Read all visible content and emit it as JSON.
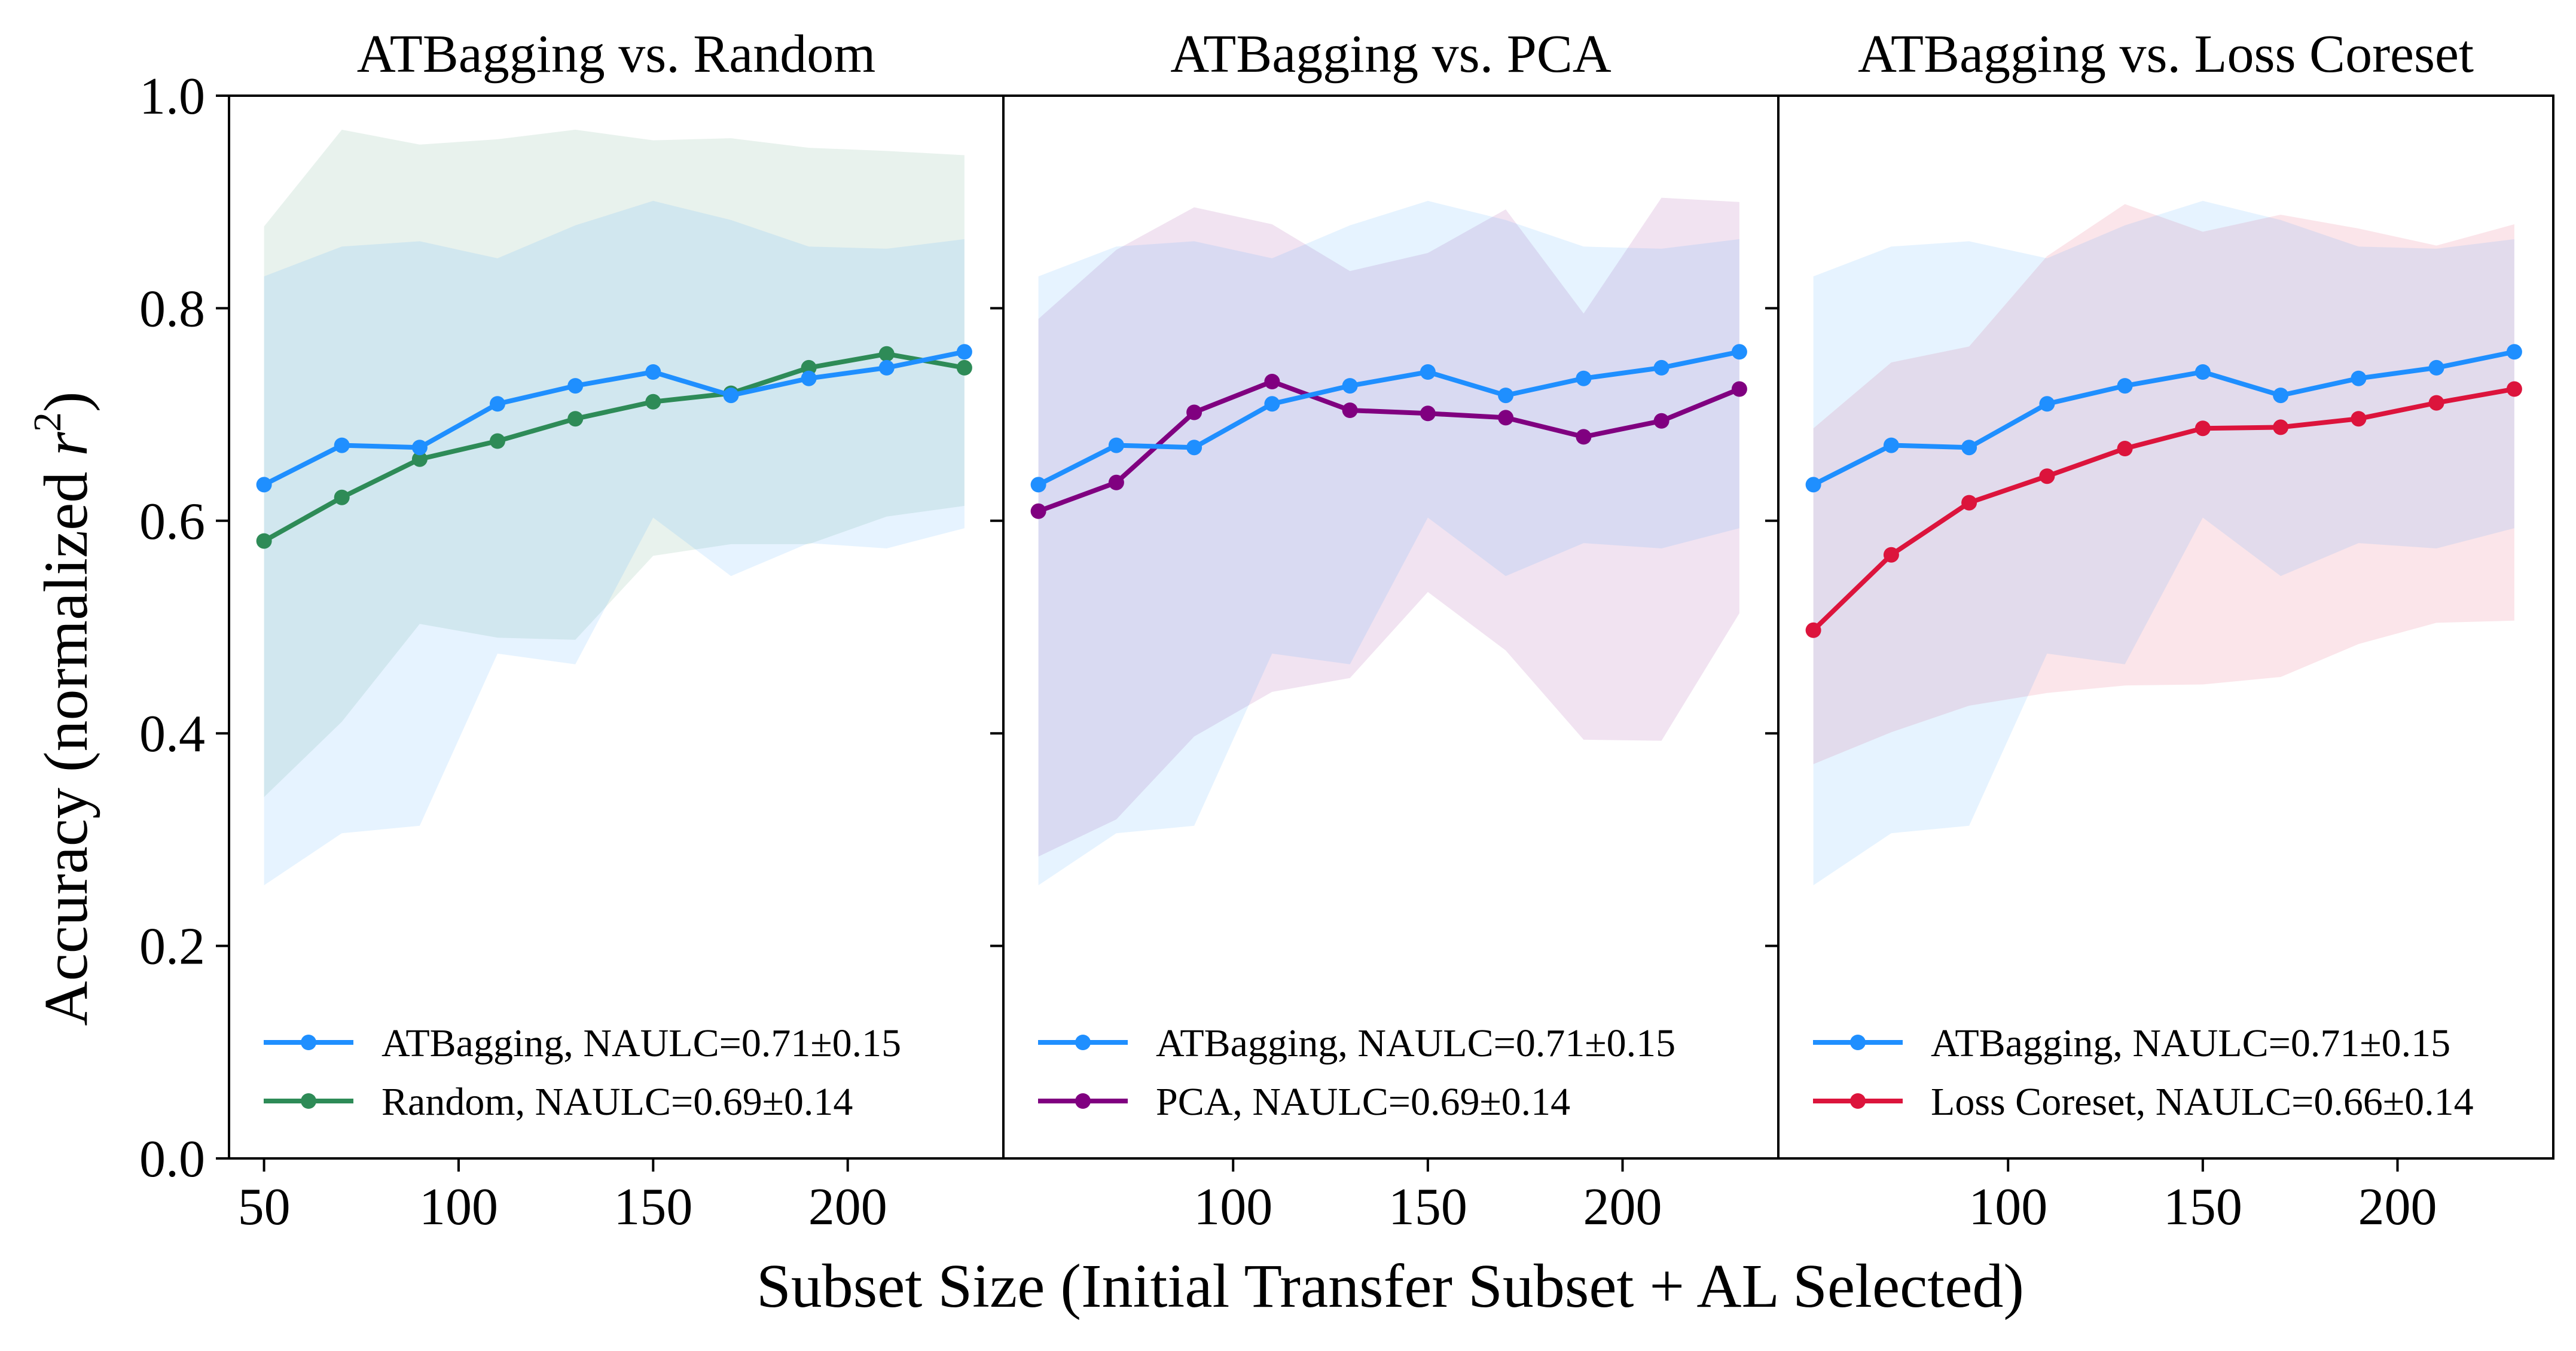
{
  "figure": {
    "xlabel": "Subset Size (Initial Transfer Subset + AL Selected)",
    "ylabel_prefix": "Accuracy (normalized ",
    "ylabel_var": "r",
    "ylabel_sup": "2",
    "ylabel_suffix": ")"
  },
  "chart_data": [
    {
      "type": "line",
      "title": "ATBagging vs. Random",
      "x": [
        50,
        70,
        90,
        110,
        130,
        150,
        170,
        190,
        210,
        230
      ],
      "xlim": [
        41,
        240
      ],
      "ylim": [
        0,
        1
      ],
      "xticks": [
        50,
        100,
        150,
        200
      ],
      "yticks": [
        0.0,
        0.2,
        0.4,
        0.6,
        0.8,
        1.0
      ],
      "ytick_labels": [
        "0.0",
        "0.2",
        "0.4",
        "0.6",
        "0.8",
        "1.0"
      ],
      "legend_position": "lower-left",
      "series": [
        {
          "name": "ATBagging, NAULC=0.71±0.15",
          "color": "#1f8fff",
          "values": [
            0.634,
            0.671,
            0.669,
            0.71,
            0.727,
            0.74,
            0.718,
            0.734,
            0.744,
            0.759
          ],
          "upper": [
            0.83,
            0.858,
            0.863,
            0.847,
            0.878,
            0.901,
            0.883,
            0.858,
            0.856,
            0.865
          ],
          "lower": [
            0.257,
            0.306,
            0.313,
            0.475,
            0.465,
            0.603,
            0.548,
            0.579,
            0.574,
            0.593
          ]
        },
        {
          "name": "Random, NAULC=0.69±0.14",
          "color": "#2e8b57",
          "values": [
            0.581,
            0.622,
            0.658,
            0.675,
            0.696,
            0.712,
            0.72,
            0.744,
            0.757,
            0.744
          ],
          "upper": [
            0.877,
            0.968,
            0.954,
            0.959,
            0.968,
            0.958,
            0.96,
            0.951,
            0.948,
            0.944
          ],
          "lower": [
            0.34,
            0.411,
            0.503,
            0.49,
            0.488,
            0.567,
            0.578,
            0.578,
            0.604,
            0.614
          ]
        }
      ]
    },
    {
      "type": "line",
      "title": "ATBagging vs. PCA",
      "x": [
        50,
        70,
        90,
        110,
        130,
        150,
        170,
        190,
        210,
        230
      ],
      "xlim": [
        41,
        240
      ],
      "ylim": [
        0,
        1
      ],
      "xticks": [
        100,
        150,
        200
      ],
      "yticks": [
        0.0,
        0.2,
        0.4,
        0.6,
        0.8,
        1.0
      ],
      "ytick_labels": [],
      "legend_position": "lower-left",
      "series": [
        {
          "name": "ATBagging, NAULC=0.71±0.15",
          "color": "#1f8fff",
          "values": [
            0.634,
            0.671,
            0.669,
            0.71,
            0.727,
            0.74,
            0.718,
            0.734,
            0.744,
            0.759
          ],
          "upper": [
            0.83,
            0.858,
            0.863,
            0.847,
            0.878,
            0.901,
            0.883,
            0.858,
            0.856,
            0.865
          ],
          "lower": [
            0.257,
            0.306,
            0.313,
            0.475,
            0.465,
            0.603,
            0.548,
            0.579,
            0.574,
            0.593
          ]
        },
        {
          "name": "PCA, NAULC=0.69±0.14",
          "color": "#800080",
          "values": [
            0.609,
            0.636,
            0.702,
            0.731,
            0.704,
            0.701,
            0.697,
            0.679,
            0.694,
            0.724
          ],
          "upper": [
            0.79,
            0.855,
            0.895,
            0.879,
            0.835,
            0.852,
            0.893,
            0.795,
            0.904,
            0.9
          ],
          "lower": [
            0.284,
            0.319,
            0.397,
            0.439,
            0.452,
            0.533,
            0.478,
            0.394,
            0.393,
            0.513
          ]
        }
      ]
    },
    {
      "type": "line",
      "title": "ATBagging vs. Loss Coreset",
      "x": [
        50,
        70,
        90,
        110,
        130,
        150,
        170,
        190,
        210,
        230
      ],
      "xlim": [
        41,
        240
      ],
      "ylim": [
        0,
        1
      ],
      "xticks": [
        100,
        150,
        200
      ],
      "yticks": [
        0.0,
        0.2,
        0.4,
        0.6,
        0.8,
        1.0
      ],
      "ytick_labels": [],
      "legend_position": "lower-left",
      "series": [
        {
          "name": "ATBagging, NAULC=0.71±0.15",
          "color": "#1f8fff",
          "values": [
            0.634,
            0.671,
            0.669,
            0.71,
            0.727,
            0.74,
            0.718,
            0.734,
            0.744,
            0.759
          ],
          "upper": [
            0.83,
            0.858,
            0.863,
            0.847,
            0.878,
            0.901,
            0.883,
            0.858,
            0.856,
            0.865
          ],
          "lower": [
            0.257,
            0.306,
            0.313,
            0.475,
            0.465,
            0.603,
            0.548,
            0.579,
            0.574,
            0.593
          ]
        },
        {
          "name": "Loss Coreset, NAULC=0.66±0.14",
          "color": "#dc143c",
          "values": [
            0.497,
            0.568,
            0.617,
            0.642,
            0.668,
            0.687,
            0.688,
            0.696,
            0.711,
            0.724
          ],
          "upper": [
            0.687,
            0.749,
            0.764,
            0.849,
            0.898,
            0.872,
            0.888,
            0.875,
            0.859,
            0.879
          ],
          "lower": [
            0.371,
            0.401,
            0.426,
            0.438,
            0.445,
            0.446,
            0.453,
            0.484,
            0.504,
            0.506
          ]
        }
      ]
    }
  ]
}
